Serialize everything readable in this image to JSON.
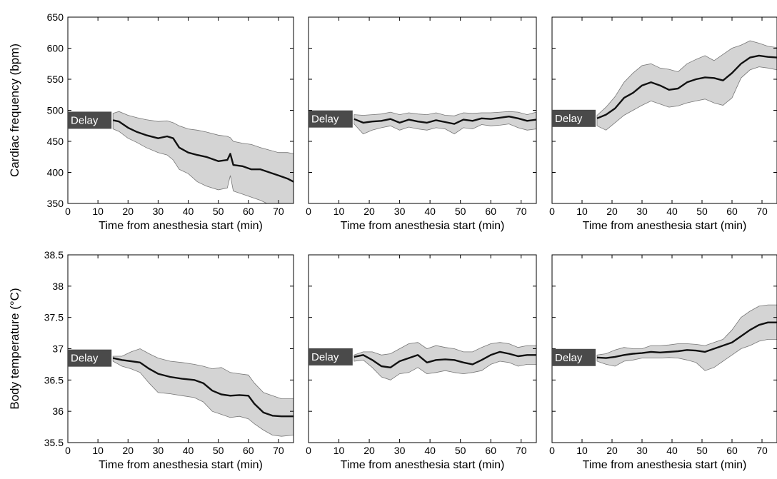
{
  "chart_data": [
    {
      "type": "area",
      "panel": "row1-col1",
      "xlabel": "Time from anesthesia start (min)",
      "ylabel": "Cardiac frequency (bpm)",
      "xlim": [
        0,
        75
      ],
      "ylim": [
        350,
        650
      ],
      "xticks": [
        0,
        10,
        20,
        30,
        40,
        50,
        60,
        70
      ],
      "yticks": [
        350,
        400,
        450,
        500,
        550,
        600,
        650
      ],
      "annotation": "Delay",
      "x": [
        15,
        17,
        20,
        23,
        26,
        30,
        33,
        35,
        37,
        40,
        43,
        46,
        50,
        53,
        54,
        55,
        58,
        61,
        64,
        67,
        70,
        73,
        75
      ],
      "series": [
        {
          "role": "mean",
          "values": [
            484,
            482,
            472,
            465,
            460,
            455,
            458,
            455,
            440,
            432,
            428,
            425,
            418,
            420,
            430,
            412,
            410,
            405,
            405,
            400,
            395,
            390,
            385
          ]
        },
        {
          "role": "upper",
          "values": [
            495,
            498,
            492,
            488,
            485,
            482,
            483,
            480,
            475,
            470,
            468,
            465,
            460,
            458,
            456,
            450,
            447,
            445,
            440,
            436,
            432,
            432,
            430
          ]
        },
        {
          "role": "lower",
          "values": [
            470,
            466,
            455,
            448,
            440,
            432,
            428,
            420,
            405,
            398,
            385,
            378,
            372,
            375,
            395,
            370,
            365,
            360,
            355,
            348,
            343,
            340,
            340
          ]
        }
      ]
    },
    {
      "type": "area",
      "panel": "row1-col2",
      "xlabel": "Time from anesthesia start (min)",
      "ylabel": "",
      "xlim": [
        0,
        75
      ],
      "ylim": [
        350,
        650
      ],
      "xticks": [
        0,
        10,
        20,
        30,
        40,
        50,
        60,
        70
      ],
      "annotation": "Delay",
      "x": [
        15,
        18,
        21,
        24,
        27,
        30,
        33,
        36,
        39,
        42,
        45,
        48,
        51,
        54,
        57,
        60,
        63,
        66,
        69,
        72,
        75
      ],
      "series": [
        {
          "role": "mean",
          "values": [
            486,
            480,
            482,
            483,
            486,
            480,
            485,
            482,
            480,
            484,
            481,
            478,
            485,
            483,
            487,
            486,
            488,
            490,
            487,
            483,
            485
          ]
        },
        {
          "role": "upper",
          "values": [
            493,
            492,
            493,
            494,
            497,
            493,
            496,
            494,
            493,
            496,
            492,
            491,
            496,
            495,
            496,
            496,
            497,
            498,
            497,
            493,
            497
          ]
        },
        {
          "role": "lower",
          "values": [
            478,
            462,
            468,
            472,
            475,
            468,
            473,
            470,
            468,
            472,
            470,
            462,
            472,
            470,
            477,
            475,
            476,
            478,
            472,
            468,
            470
          ]
        }
      ]
    },
    {
      "type": "area",
      "panel": "row1-col3",
      "xlabel": "Time from anesthesia start (min)",
      "ylabel": "",
      "xlim": [
        0,
        75
      ],
      "ylim": [
        350,
        650
      ],
      "xticks": [
        0,
        10,
        20,
        30,
        40,
        50,
        60,
        70
      ],
      "annotation": "Delay",
      "x": [
        15,
        18,
        21,
        24,
        27,
        30,
        33,
        36,
        39,
        42,
        45,
        48,
        51,
        54,
        57,
        60,
        63,
        66,
        69,
        72,
        75
      ],
      "series": [
        {
          "role": "mean",
          "values": [
            487,
            493,
            503,
            520,
            528,
            540,
            545,
            540,
            533,
            535,
            545,
            550,
            553,
            552,
            548,
            560,
            575,
            585,
            588,
            586,
            585
          ]
        },
        {
          "role": "upper",
          "values": [
            492,
            505,
            522,
            545,
            560,
            572,
            575,
            568,
            566,
            562,
            575,
            582,
            588,
            580,
            590,
            600,
            605,
            612,
            608,
            603,
            601
          ]
        },
        {
          "role": "lower",
          "values": [
            475,
            468,
            480,
            492,
            500,
            508,
            515,
            510,
            505,
            507,
            512,
            515,
            518,
            512,
            508,
            520,
            552,
            565,
            570,
            568,
            565
          ]
        }
      ]
    },
    {
      "type": "area",
      "panel": "row2-col1",
      "xlabel": "Time from anesthesia start (min)",
      "ylabel": "Body temperature (°C)",
      "xlim": [
        0,
        75
      ],
      "ylim": [
        35.5,
        38.5
      ],
      "xticks": [
        0,
        10,
        20,
        30,
        40,
        50,
        60,
        70
      ],
      "yticks": [
        35.5,
        36,
        36.5,
        37,
        37.5,
        38,
        38.5
      ],
      "annotation": "Delay",
      "x": [
        15,
        18,
        21,
        24,
        27,
        30,
        34,
        38,
        42,
        45,
        48,
        51,
        54,
        57,
        60,
        62,
        65,
        68,
        71,
        75
      ],
      "series": [
        {
          "role": "mean",
          "values": [
            36.85,
            36.82,
            36.8,
            36.78,
            36.68,
            36.6,
            36.55,
            36.52,
            36.5,
            36.45,
            36.33,
            36.27,
            36.25,
            36.26,
            36.25,
            36.12,
            35.98,
            35.93,
            35.92,
            35.92
          ]
        },
        {
          "role": "upper",
          "values": [
            36.88,
            36.88,
            36.95,
            37.0,
            36.92,
            36.85,
            36.8,
            36.78,
            36.75,
            36.72,
            36.68,
            36.7,
            36.62,
            36.6,
            36.58,
            36.45,
            36.3,
            36.25,
            36.2,
            36.2
          ]
        },
        {
          "role": "lower",
          "values": [
            36.8,
            36.72,
            36.68,
            36.62,
            36.45,
            36.3,
            36.28,
            36.25,
            36.22,
            36.15,
            36.0,
            35.95,
            35.9,
            35.92,
            35.88,
            35.8,
            35.7,
            35.62,
            35.6,
            35.62
          ]
        }
      ]
    },
    {
      "type": "area",
      "panel": "row2-col2",
      "xlabel": "Time from anesthesia start (min)",
      "ylabel": "",
      "xlim": [
        0,
        75
      ],
      "ylim": [
        35.5,
        38.5
      ],
      "xticks": [
        0,
        10,
        20,
        30,
        40,
        50,
        60,
        70
      ],
      "annotation": "Delay",
      "x": [
        15,
        18,
        21,
        24,
        27,
        30,
        33,
        36,
        39,
        42,
        45,
        48,
        51,
        54,
        57,
        60,
        63,
        66,
        69,
        72,
        75
      ],
      "series": [
        {
          "role": "mean",
          "values": [
            36.87,
            36.9,
            36.82,
            36.72,
            36.7,
            36.8,
            36.85,
            36.9,
            36.78,
            36.82,
            36.83,
            36.82,
            36.78,
            36.75,
            36.82,
            36.9,
            36.95,
            36.92,
            36.88,
            36.9,
            36.9
          ]
        },
        {
          "role": "upper",
          "values": [
            36.9,
            36.95,
            36.95,
            36.9,
            36.92,
            37.0,
            37.08,
            37.1,
            37.0,
            37.05,
            37.02,
            37.0,
            36.95,
            36.95,
            37.02,
            37.08,
            37.1,
            37.08,
            37.02,
            37.05,
            37.05
          ]
        },
        {
          "role": "lower",
          "values": [
            36.8,
            36.82,
            36.7,
            36.55,
            36.5,
            36.6,
            36.62,
            36.7,
            36.6,
            36.62,
            36.65,
            36.62,
            36.6,
            36.62,
            36.65,
            36.75,
            36.8,
            36.78,
            36.72,
            36.75,
            36.75
          ]
        }
      ]
    },
    {
      "type": "area",
      "panel": "row2-col3",
      "xlabel": "Time from anesthesia start (min)",
      "ylabel": "",
      "xlim": [
        0,
        75
      ],
      "ylim": [
        35.5,
        38.5
      ],
      "xticks": [
        0,
        10,
        20,
        30,
        40,
        50,
        60,
        70
      ],
      "annotation": "Delay",
      "x": [
        15,
        18,
        21,
        24,
        27,
        30,
        33,
        36,
        39,
        42,
        45,
        48,
        51,
        54,
        57,
        60,
        63,
        66,
        69,
        72,
        75
      ],
      "series": [
        {
          "role": "mean",
          "values": [
            36.86,
            36.85,
            36.87,
            36.9,
            36.92,
            36.93,
            36.95,
            36.94,
            36.95,
            36.96,
            36.98,
            36.97,
            36.95,
            37.0,
            37.05,
            37.1,
            37.2,
            37.3,
            37.38,
            37.42,
            37.42
          ]
        },
        {
          "role": "upper",
          "values": [
            36.9,
            36.92,
            36.98,
            37.02,
            37.0,
            37.0,
            37.05,
            37.05,
            37.06,
            37.08,
            37.08,
            37.07,
            37.05,
            37.1,
            37.15,
            37.3,
            37.5,
            37.6,
            37.68,
            37.7,
            37.7
          ]
        },
        {
          "role": "lower",
          "values": [
            36.8,
            36.75,
            36.72,
            36.8,
            36.82,
            36.85,
            36.85,
            36.85,
            36.86,
            36.85,
            36.82,
            36.78,
            36.65,
            36.7,
            36.8,
            36.9,
            37.0,
            37.05,
            37.12,
            37.15,
            37.15
          ]
        }
      ]
    }
  ]
}
